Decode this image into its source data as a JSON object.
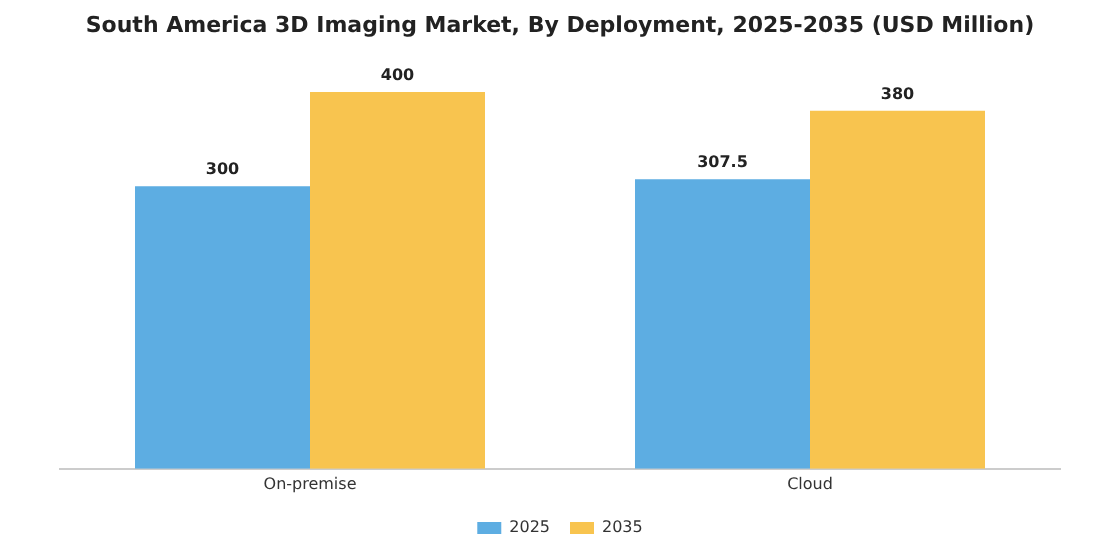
{
  "chart_data": {
    "type": "bar",
    "title": "South America 3D Imaging Market, By Deployment, 2025-2035 (USD Million)",
    "categories": [
      "On-premise",
      "Cloud"
    ],
    "series": [
      {
        "name": "2025",
        "color": "#5dade2",
        "values": [
          300,
          307.5
        ]
      },
      {
        "name": "2035",
        "color": "#f8c44f",
        "values": [
          400,
          380
        ]
      }
    ],
    "data_labels": true,
    "legend": "bottom",
    "grid": false
  }
}
